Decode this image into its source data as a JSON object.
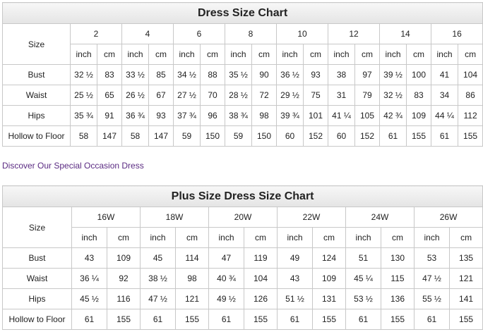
{
  "dress_chart": {
    "title": "Dress Size Chart",
    "size_label": "Size",
    "sizes": [
      "2",
      "4",
      "6",
      "8",
      "10",
      "12",
      "14",
      "16"
    ],
    "units": [
      "inch",
      "cm",
      "inch",
      "cm",
      "inch",
      "cm",
      "inch",
      "cm",
      "inch",
      "cm",
      "inch",
      "cm",
      "inch",
      "cm",
      "inch",
      "cm"
    ],
    "rows": [
      {
        "label": "Bust",
        "values": [
          "32 ½",
          "83",
          "33 ½",
          "85",
          "34 ½",
          "88",
          "35 ½",
          "90",
          "36 ½",
          "93",
          "38",
          "97",
          "39 ½",
          "100",
          "41",
          "104"
        ]
      },
      {
        "label": "Waist",
        "values": [
          "25 ½",
          "65",
          "26 ½",
          "67",
          "27 ½",
          "70",
          "28 ½",
          "72",
          "29 ½",
          "75",
          "31",
          "79",
          "32 ½",
          "83",
          "34",
          "86"
        ]
      },
      {
        "label": "Hips",
        "values": [
          "35 ¾",
          "91",
          "36 ¾",
          "93",
          "37 ¾",
          "96",
          "38 ¾",
          "98",
          "39 ¾",
          "101",
          "41 ¼",
          "105",
          "42 ¾",
          "109",
          "44 ¼",
          "112"
        ]
      },
      {
        "label": "Hollow to Floor",
        "values": [
          "58",
          "147",
          "58",
          "147",
          "59",
          "150",
          "59",
          "150",
          "60",
          "152",
          "60",
          "152",
          "61",
          "155",
          "61",
          "155"
        ]
      }
    ]
  },
  "link": "Discover Our Special Occasion Dress",
  "plus_chart": {
    "title": "Plus Size Dress Size Chart",
    "size_label": "Size",
    "sizes": [
      "16W",
      "18W",
      "20W",
      "22W",
      "24W",
      "26W"
    ],
    "units": [
      "inch",
      "cm",
      "inch",
      "cm",
      "inch",
      "cm",
      "inch",
      "cm",
      "inch",
      "cm",
      "inch",
      "cm"
    ],
    "rows": [
      {
        "label": "Bust",
        "values": [
          "43",
          "109",
          "45",
          "114",
          "47",
          "119",
          "49",
          "124",
          "51",
          "130",
          "53",
          "135"
        ]
      },
      {
        "label": "Waist",
        "values": [
          "36 ¼",
          "92",
          "38 ½",
          "98",
          "40 ¾",
          "104",
          "43",
          "109",
          "45 ¼",
          "115",
          "47 ½",
          "121"
        ]
      },
      {
        "label": "Hips",
        "values": [
          "45 ½",
          "116",
          "47 ½",
          "121",
          "49 ½",
          "126",
          "51 ½",
          "131",
          "53 ½",
          "136",
          "55 ½",
          "141"
        ]
      },
      {
        "label": "Hollow to Floor",
        "values": [
          "61",
          "155",
          "61",
          "155",
          "61",
          "155",
          "61",
          "155",
          "61",
          "155",
          "61",
          "155"
        ]
      }
    ]
  }
}
